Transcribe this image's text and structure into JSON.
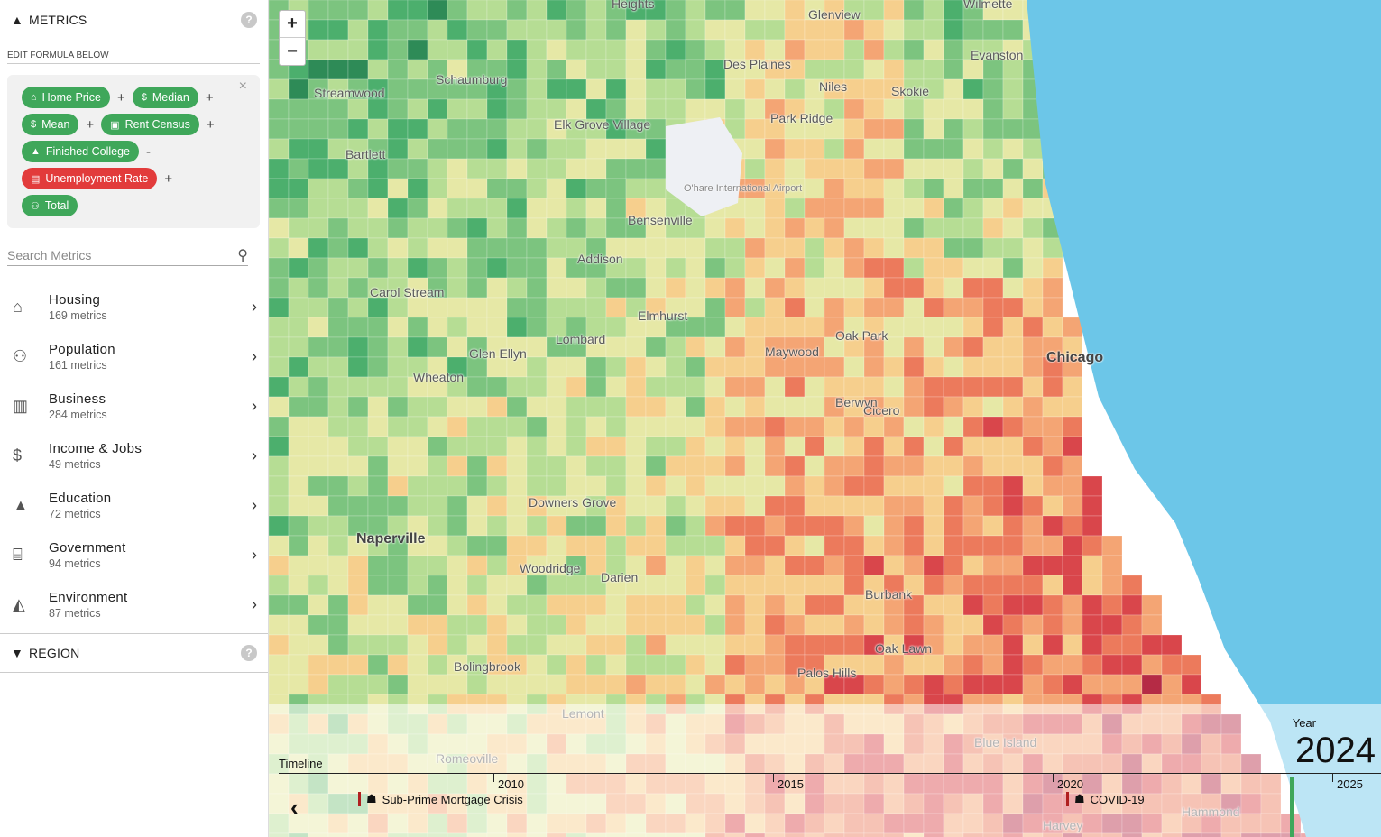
{
  "metrics_section": {
    "title": "METRICS",
    "help": "?"
  },
  "formula": {
    "label": "EDIT FORMULA BELOW",
    "close": "×",
    "rows": [
      [
        {
          "type": "chip",
          "label": "Home Price",
          "icon": "home-icon",
          "color": "#3fa75a"
        },
        {
          "type": "op",
          "label": "+"
        },
        {
          "type": "chip",
          "label": "Median",
          "icon": "dollar-icon",
          "color": "#3fa75a"
        },
        {
          "type": "op",
          "label": "+"
        }
      ],
      [
        {
          "type": "chip",
          "label": "Mean",
          "icon": "dollar-icon",
          "color": "#3fa75a"
        },
        {
          "type": "op",
          "label": "+"
        },
        {
          "type": "chip",
          "label": "Rent Census",
          "icon": "building-icon",
          "color": "#3fa75a"
        },
        {
          "type": "op",
          "label": "+"
        }
      ],
      [
        {
          "type": "chip",
          "label": "Finished College",
          "icon": "graduation-icon",
          "color": "#3fa75a"
        },
        {
          "type": "op",
          "label": "-"
        }
      ],
      [
        {
          "type": "chip",
          "label": "Unemployment Rate",
          "icon": "briefcase-icon",
          "color": "#e23b3b"
        },
        {
          "type": "op",
          "label": "+"
        }
      ],
      [
        {
          "type": "chip",
          "label": "Total",
          "icon": "people-icon",
          "color": "#3fa75a"
        }
      ]
    ]
  },
  "search": {
    "placeholder": "Search Metrics"
  },
  "categories": [
    {
      "name": "Housing",
      "count": "169 metrics",
      "icon": "home-icon"
    },
    {
      "name": "Population",
      "count": "161 metrics",
      "icon": "people-icon"
    },
    {
      "name": "Business",
      "count": "284 metrics",
      "icon": "factory-icon"
    },
    {
      "name": "Income & Jobs",
      "count": "49 metrics",
      "icon": "dollar-icon"
    },
    {
      "name": "Education",
      "count": "72 metrics",
      "icon": "graduation-icon"
    },
    {
      "name": "Government",
      "count": "94 metrics",
      "icon": "government-icon"
    },
    {
      "name": "Environment",
      "count": "87 metrics",
      "icon": "mountain-icon"
    }
  ],
  "region_section": {
    "title": "REGION",
    "help": "?"
  },
  "map": {
    "zoom_in": "+",
    "zoom_out": "−",
    "labels": [
      "Heights",
      "Glenview",
      "Wilmette",
      "Des Plaines",
      "Evanston",
      "Schaumburg",
      "Streamwood",
      "Niles",
      "Skokie",
      "Park Ridge",
      "Elk Grove Village",
      "Bartlett",
      "O'hare International Airport",
      "Bensenville",
      "Addison",
      "Carol Stream",
      "Elmhurst",
      "Oak Park",
      "Maywood",
      "Chicago",
      "Glen Ellyn",
      "Lombard",
      "Wheaton",
      "Berwyn",
      "Cicero",
      "Downers Grove",
      "Naperville",
      "Woodridge",
      "Darien",
      "Burbank",
      "Oak Lawn",
      "Bolingbrook",
      "Palos Hills",
      "Lemont",
      "Romeoville",
      "Blue Island",
      "Hammond",
      "Harvey"
    ]
  },
  "timeline": {
    "title": "Timeline",
    "back": "‹",
    "year_label": "Year",
    "year_value": "2024",
    "ticks": [
      "2010",
      "2015",
      "2020",
      "2025"
    ],
    "events": [
      {
        "label": "Sub-Prime Mortgage Crisis",
        "icon": "crisis-icon"
      },
      {
        "label": "COVID-19",
        "icon": "crisis-icon"
      }
    ]
  }
}
